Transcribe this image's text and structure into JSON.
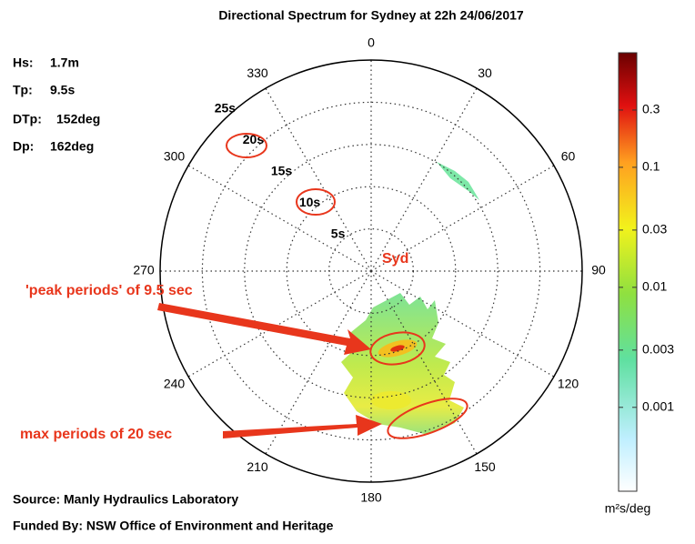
{
  "chart_data": {
    "type": "polar",
    "title": "Directional Spectrum for Sydney at 22h 24/06/2017",
    "stats": [
      {
        "label": "Hs:",
        "value": "1.7m"
      },
      {
        "label": "Tp:",
        "value": "9.5s"
      },
      {
        "label": "DTp:",
        "value": "152deg"
      },
      {
        "label": "Dp:",
        "value": "162deg"
      }
    ],
    "angle_ticks": [
      0,
      30,
      60,
      90,
      120,
      150,
      180,
      210,
      240,
      270,
      300,
      330
    ],
    "rlim": [
      0,
      25
    ],
    "rticks": [
      {
        "value": 5,
        "label": "5s"
      },
      {
        "value": 10,
        "label": "10s"
      },
      {
        "value": 15,
        "label": "15s"
      },
      {
        "value": 20,
        "label": "20s"
      },
      {
        "value": 25,
        "label": "25s"
      }
    ],
    "center_label": "Syd",
    "colorbar": {
      "log": true,
      "lim": [
        0.0002,
        0.9
      ],
      "ticks": [
        0.001,
        0.003,
        0.01,
        0.03,
        0.1,
        0.3
      ],
      "unit": "m²s/deg"
    },
    "annotations": [
      "'peak periods' of 9.5 sec",
      "max periods of 20 sec"
    ],
    "footer": [
      "Source: Manly Hydraulics Laboratory",
      "Funded By: NSW Office of Environment and Heritage"
    ]
  }
}
